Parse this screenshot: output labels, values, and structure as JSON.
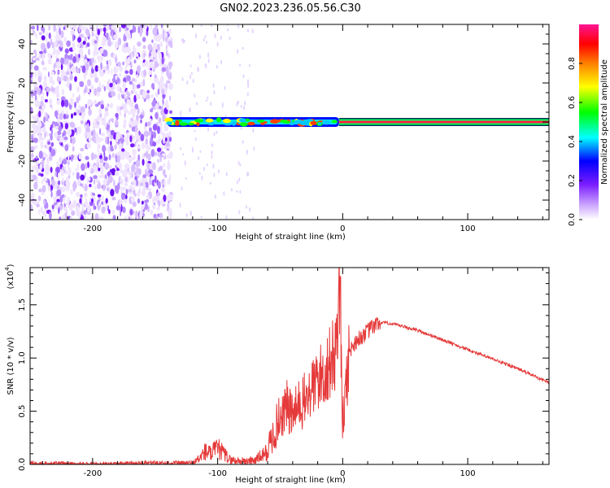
{
  "title": "GN02.2023.236.05.56.C30",
  "chart_data": [
    {
      "type": "heatmap",
      "xlabel": "Height of straight line (km)",
      "ylabel": "Frequency (Hz)",
      "xlim": [
        -250,
        165
      ],
      "ylim": [
        -50,
        50
      ],
      "xticks": [
        -200,
        -100,
        0,
        100
      ],
      "yticks": [
        -40,
        -20,
        0,
        20,
        40
      ],
      "colorbar": {
        "label": "Normalized spectral amplitude",
        "ticks": [
          "0.0",
          "0.2",
          "0.4",
          "0.6",
          "0.8"
        ],
        "range": [
          0,
          1
        ],
        "colors": [
          "#ffffff",
          "#c8a0ff",
          "#7a1cff",
          "#0000ff",
          "#00ffff",
          "#00ff00",
          "#ffff00",
          "#ff8000",
          "#ff0000",
          "#ff1493"
        ]
      },
      "description_regions": {
        "noise_band_x": [
          -250,
          -137
        ],
        "signal_start_x": -140,
        "signal_freq_hz": 0,
        "steady_line_start_x": -3
      }
    },
    {
      "type": "line",
      "xlabel": "Height of straight line (km)",
      "ylabel": "SNR (10 * v/v)",
      "exponent_label": "(x10",
      "exponent_power": "4",
      "exponent_close": ")",
      "xlim": [
        -250,
        165
      ],
      "ylim": [
        0,
        1.85
      ],
      "xticks": [
        -200,
        -100,
        0,
        100
      ],
      "yticks": [
        "0.0",
        "0.5",
        "1.0",
        "1.5"
      ],
      "series_color": "#e53a3a",
      "series": [
        {
          "x": [
            -250,
            -200,
            -150,
            -120,
            -115,
            -110,
            -105,
            -100,
            -95,
            -90,
            -80,
            -70,
            -60,
            -55,
            -50,
            -45,
            -40,
            -35,
            -30,
            -25,
            -20,
            -15,
            -10,
            -6,
            -4,
            -2,
            0,
            5,
            10,
            15,
            20,
            25,
            30,
            35,
            40,
            60,
            80,
            100,
            120,
            140,
            165
          ],
          "y": [
            0.01,
            0.0,
            0.01,
            0.01,
            0.05,
            0.12,
            0.1,
            0.15,
            0.1,
            0.04,
            0.03,
            0.04,
            0.12,
            0.3,
            0.45,
            0.55,
            0.45,
            0.55,
            0.6,
            0.7,
            0.8,
            0.85,
            0.95,
            1.05,
            1.4,
            1.7,
            0.35,
            1.05,
            1.15,
            1.2,
            1.25,
            1.3,
            1.33,
            1.33,
            1.32,
            1.26,
            1.17,
            1.08,
            0.99,
            0.9,
            0.77
          ]
        }
      ]
    }
  ]
}
